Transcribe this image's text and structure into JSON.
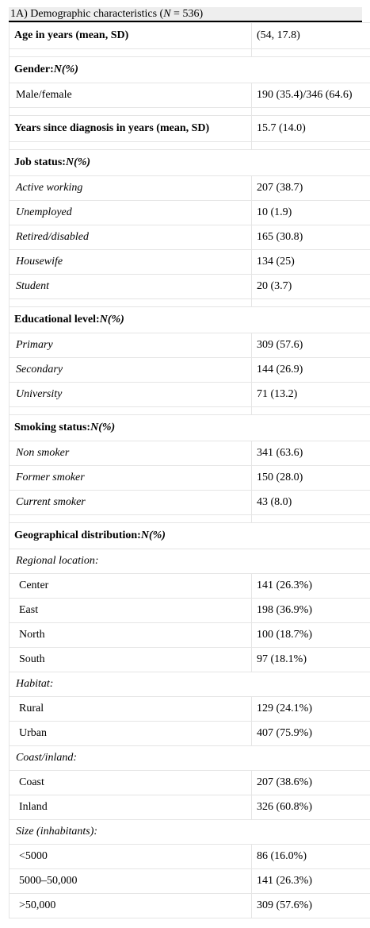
{
  "caption": {
    "prefix": "1A) Demographic characteristics (",
    "n_symbol": "N",
    "suffix": " = 536)"
  },
  "age": {
    "label": "Age in years (mean, SD)",
    "value": "(54, 17.8)"
  },
  "gender": {
    "label": "Gender:",
    "unit": "N(%)",
    "rows": [
      {
        "label": "Male/female",
        "value": "190 (35.4)/346 (64.6)"
      }
    ]
  },
  "years_dx": {
    "label": "Years since diagnosis in years (mean, SD)",
    "value": "15.7 (14.0)"
  },
  "job": {
    "label": "Job status:",
    "unit": "N(%)",
    "rows": [
      {
        "label": "Active working",
        "value": "207 (38.7)"
      },
      {
        "label": "Unemployed",
        "value": "10 (1.9)"
      },
      {
        "label": "Retired/disabled",
        "value": "165 (30.8)"
      },
      {
        "label": "Housewife",
        "value": "134 (25)"
      },
      {
        "label": "Student",
        "value": "20 (3.7)"
      }
    ]
  },
  "education": {
    "label": "Educational level:",
    "unit": "N(%)",
    "rows": [
      {
        "label": "Primary",
        "value": "309 (57.6)"
      },
      {
        "label": "Secondary",
        "value": "144 (26.9)"
      },
      {
        "label": "University",
        "value": "71 (13.2)"
      }
    ]
  },
  "smoking": {
    "label": "Smoking status:",
    "unit": "N(%)",
    "rows": [
      {
        "label": "Non smoker",
        "value": "341 (63.6)"
      },
      {
        "label": "Former smoker",
        "value": "150 (28.0)"
      },
      {
        "label": "Current smoker",
        "value": "43 (8.0)"
      }
    ]
  },
  "geo": {
    "label": "Geographical distribution:",
    "unit": "N(%)",
    "regional": {
      "label": "Regional location:",
      "rows": [
        {
          "label": "Center",
          "value": "141 (26.3%)"
        },
        {
          "label": "East",
          "value": "198 (36.9%)"
        },
        {
          "label": "North",
          "value": "100 (18.7%)"
        },
        {
          "label": "South",
          "value": "97 (18.1%)"
        }
      ]
    },
    "habitat": {
      "label": "Habitat:",
      "rows": [
        {
          "label": "Rural",
          "value": "129 (24.1%)"
        },
        {
          "label": "Urban",
          "value": "407 (75.9%)"
        }
      ]
    },
    "coast": {
      "label": "Coast/inland:",
      "rows": [
        {
          "label": "Coast",
          "value": "207 (38.6%)"
        },
        {
          "label": "Inland",
          "value": "326 (60.8%)"
        }
      ]
    },
    "size": {
      "label": "Size (inhabitants):",
      "rows": [
        {
          "label": "<5000",
          "value": "86 (16.0%)"
        },
        {
          "label": "5000–50,000",
          "value": "141 (26.3%)"
        },
        {
          "label": ">50,000",
          "value": "309 (57.6%)"
        }
      ]
    }
  }
}
